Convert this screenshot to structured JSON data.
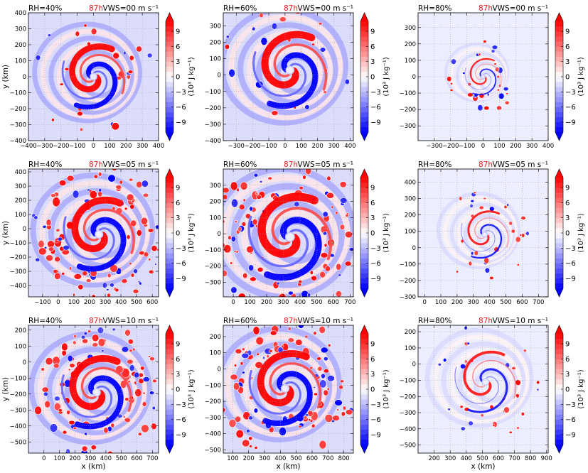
{
  "chart_data": {
    "type": "heatmap",
    "time_label": "87h",
    "time_color": "#e41a1c",
    "colormap": {
      "low": "#0000ff",
      "mid": "#ffffff",
      "high": "#ff0000"
    },
    "colorbar": {
      "ticks": [
        9,
        6,
        3,
        0,
        -3,
        -6,
        -9
      ],
      "tick_labels": [
        "9",
        "6",
        "3",
        "0",
        "−3",
        "−6",
        "−9"
      ],
      "range": [
        -11,
        11
      ],
      "label": "(10³ J kg⁻¹)"
    },
    "xlabel": "x (km)",
    "ylabel": "y (km)",
    "grid": true,
    "panels": [
      {
        "rh": "RH=40%",
        "vws": "VWS=00 m s⁻¹",
        "xlim": [
          -400,
          400
        ],
        "ylim": [
          -400,
          400
        ],
        "xticks": [
          -400,
          -300,
          -200,
          -100,
          0,
          100,
          200,
          300,
          400
        ],
        "yticks": [
          -400,
          -300,
          -200,
          -100,
          0,
          100,
          200,
          300,
          400
        ],
        "center": [
          0,
          0
        ],
        "spiral": "strong",
        "ring": 170
      },
      {
        "rh": "RH=60%",
        "vws": "VWS=00 m s⁻¹",
        "xlim": [
          -380,
          420
        ],
        "ylim": [
          -400,
          380
        ],
        "xticks": [
          -300,
          -200,
          -100,
          0,
          100,
          200,
          300,
          400
        ],
        "yticks": [
          -400,
          -300,
          -200,
          -100,
          0,
          100,
          200,
          300
        ],
        "center": [
          30,
          30
        ],
        "spiral": "strong",
        "ring": 200
      },
      {
        "rh": "RH=80%",
        "vws": "VWS=00 m s⁻¹",
        "xlim": [
          -400,
          400
        ],
        "ylim": [
          -390,
          390
        ],
        "xticks": [
          -300,
          -200,
          -100,
          0,
          100,
          200,
          300,
          400
        ],
        "yticks": [
          -300,
          -200,
          -100,
          0,
          100,
          200,
          300
        ],
        "center": [
          0,
          0
        ],
        "spiral": "weak",
        "ring": 100
      },
      {
        "rh": "RH=40%",
        "vws": "VWS=05 m s⁻¹",
        "xlim": [
          -190,
          640
        ],
        "ylim": [
          -480,
          420
        ],
        "xticks": [
          -100,
          0,
          100,
          200,
          300,
          400,
          500,
          600
        ],
        "yticks": [
          -400,
          -300,
          -200,
          -100,
          0,
          100,
          200,
          300,
          400
        ],
        "center": [
          260,
          -40
        ],
        "spiral": "strong",
        "ring": 200
      },
      {
        "rh": "RH=60%",
        "vws": "VWS=05 m s⁻¹",
        "xlim": [
          -60,
          720
        ],
        "ylim": [
          -390,
          400
        ],
        "xticks": [
          0,
          100,
          200,
          300,
          400,
          500,
          600,
          700
        ],
        "yticks": [
          -300,
          -200,
          -100,
          0,
          100,
          200,
          300
        ],
        "center": [
          340,
          -20
        ],
        "spiral": "strong",
        "ring": 220
      },
      {
        "rh": "RH=80%",
        "vws": "VWS=05 m s⁻¹",
        "xlim": [
          -40,
          760
        ],
        "ylim": [
          -300,
          480
        ],
        "xticks": [
          0,
          100,
          200,
          300,
          400,
          500,
          600,
          700
        ],
        "yticks": [
          -300,
          -200,
          -100,
          0,
          100,
          200,
          300,
          400
        ],
        "center": [
          370,
          80
        ],
        "spiral": "weak",
        "ring": 130
      },
      {
        "rh": "RH=40%",
        "vws": "VWS=10 m s⁻¹",
        "xlim": [
          -100,
          740
        ],
        "ylim": [
          -570,
          230
        ],
        "xticks": [
          0,
          100,
          200,
          300,
          400,
          500,
          600,
          700
        ],
        "yticks": [
          -500,
          -400,
          -300,
          -200,
          -100,
          0,
          100,
          200
        ],
        "center": [
          340,
          -190
        ],
        "spiral": "strong",
        "ring": 200
      },
      {
        "rh": "RH=60%",
        "vws": "VWS=10 m s⁻¹",
        "xlim": [
          40,
          860
        ],
        "ylim": [
          -520,
          270
        ],
        "xticks": [
          100,
          200,
          300,
          400,
          500,
          600,
          700,
          800
        ],
        "yticks": [
          -500,
          -400,
          -300,
          -200,
          -100,
          0,
          100,
          200
        ],
        "center": [
          430,
          -120
        ],
        "spiral": "strong",
        "ring": 200
      },
      {
        "rh": "RH=80%",
        "vws": "VWS=10 m s⁻¹",
        "xlim": [
          100,
          910
        ],
        "ylim": [
          -550,
          240
        ],
        "xticks": [
          200,
          300,
          400,
          500,
          600,
          700,
          800,
          900
        ],
        "yticks": [
          -500,
          -400,
          -300,
          -200,
          -100,
          0,
          100,
          200
        ],
        "center": [
          520,
          -110
        ],
        "spiral": "weak",
        "ring": 170
      }
    ]
  }
}
